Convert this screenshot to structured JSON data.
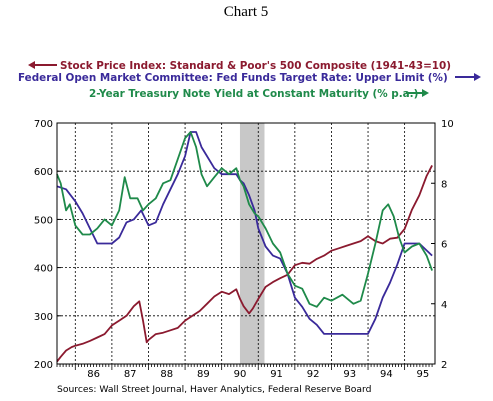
{
  "chart_data": {
    "type": "line",
    "title": "Chart 5",
    "x_tick_labels": [
      "86",
      "87",
      "88",
      "89",
      "90",
      "91",
      "92",
      "93",
      "94",
      "95"
    ],
    "x_range": [
      1985.5,
      1995.83
    ],
    "y_left": {
      "range": [
        200,
        700
      ],
      "ticks": [
        200,
        300,
        400,
        500,
        600,
        700
      ]
    },
    "y_right": {
      "range": [
        2,
        10
      ],
      "ticks": [
        2,
        4,
        6,
        8,
        10
      ]
    },
    "recession_band": [
      1990.5,
      1991.17
    ],
    "grid": true,
    "source": "Sources:  Wall Street Journal, Haver Analytics, Federal Reserve Board",
    "colors": {
      "sp500": "#8b1a2f",
      "fedfunds": "#3a2a9a",
      "treasury": "#1f8a4a",
      "recession": "#c8c8c8",
      "grid": "#000000"
    },
    "series": [
      {
        "name": "Stock Price Index: Standard & Poor's 500 Composite  (1941-43=10)",
        "legend_arrow": "left",
        "axis": "left",
        "color_key": "sp500",
        "x": [
          1985.5,
          1985.6,
          1985.75,
          1985.9,
          1986.0,
          1986.2,
          1986.4,
          1986.6,
          1986.8,
          1987.0,
          1987.2,
          1987.4,
          1987.6,
          1987.75,
          1987.85,
          1987.95,
          1988.0,
          1988.2,
          1988.4,
          1988.6,
          1988.8,
          1989.0,
          1989.2,
          1989.4,
          1989.6,
          1989.8,
          1990.0,
          1990.2,
          1990.4,
          1990.5,
          1990.6,
          1990.75,
          1990.85,
          1991.0,
          1991.2,
          1991.4,
          1991.6,
          1991.8,
          1992.0,
          1992.2,
          1992.4,
          1992.6,
          1992.8,
          1993.0,
          1993.2,
          1993.4,
          1993.6,
          1993.8,
          1994.0,
          1994.2,
          1994.4,
          1994.6,
          1994.8,
          1995.0,
          1995.2,
          1995.4,
          1995.6,
          1995.75
        ],
        "y": [
          205,
          215,
          228,
          235,
          238,
          242,
          248,
          255,
          262,
          280,
          290,
          300,
          320,
          330,
          290,
          245,
          250,
          262,
          265,
          270,
          275,
          290,
          300,
          310,
          325,
          340,
          350,
          345,
          355,
          335,
          320,
          305,
          315,
          335,
          360,
          370,
          378,
          385,
          405,
          410,
          408,
          418,
          425,
          435,
          440,
          445,
          450,
          455,
          465,
          455,
          450,
          460,
          462,
          480,
          520,
          550,
          590,
          612
        ]
      },
      {
        "name": "Federal Open Market Committee: Fed Funds Target Rate: Upper Limit (%)",
        "legend_arrow": "right",
        "axis": "right",
        "color_key": "fedfunds",
        "x": [
          1985.5,
          1985.75,
          1986.0,
          1986.2,
          1986.4,
          1986.6,
          1986.8,
          1987.0,
          1987.2,
          1987.4,
          1987.6,
          1987.8,
          1988.0,
          1988.2,
          1988.4,
          1988.6,
          1988.8,
          1989.0,
          1989.15,
          1989.3,
          1989.45,
          1989.6,
          1989.8,
          1990.0,
          1990.2,
          1990.4,
          1990.5,
          1990.6,
          1990.75,
          1990.9,
          1991.0,
          1991.2,
          1991.4,
          1991.6,
          1991.8,
          1992.0,
          1992.2,
          1992.4,
          1992.6,
          1992.8,
          1993.0,
          1993.4,
          1993.8,
          1994.0,
          1994.2,
          1994.4,
          1994.6,
          1994.8,
          1995.0,
          1995.4,
          1995.75
        ],
        "y": [
          7.9,
          7.8,
          7.4,
          7.0,
          6.5,
          6.0,
          6.0,
          6.0,
          6.2,
          6.7,
          6.8,
          7.1,
          6.6,
          6.7,
          7.3,
          7.8,
          8.3,
          8.9,
          9.7,
          9.7,
          9.2,
          8.9,
          8.5,
          8.3,
          8.3,
          8.3,
          8.1,
          8.0,
          7.6,
          7.1,
          6.5,
          5.9,
          5.6,
          5.5,
          5.0,
          4.2,
          3.9,
          3.5,
          3.3,
          3.0,
          3.0,
          3.0,
          3.0,
          3.0,
          3.5,
          4.2,
          4.7,
          5.3,
          6.0,
          6.0,
          5.6
        ]
      },
      {
        "name": "2-Year Treasury Note Yield at Constant Maturity (% p.a.)",
        "legend_arrow": "right",
        "axis": "right",
        "color_key": "treasury",
        "x": [
          1985.5,
          1985.6,
          1985.75,
          1985.85,
          1986.0,
          1986.2,
          1986.4,
          1986.6,
          1986.8,
          1987.0,
          1987.2,
          1987.35,
          1987.5,
          1987.7,
          1987.85,
          1988.0,
          1988.2,
          1988.4,
          1988.6,
          1988.8,
          1989.0,
          1989.15,
          1989.3,
          1989.45,
          1989.6,
          1989.8,
          1990.0,
          1990.2,
          1990.4,
          1990.5,
          1990.6,
          1990.75,
          1990.9,
          1991.0,
          1991.2,
          1991.4,
          1991.6,
          1991.8,
          1992.0,
          1992.2,
          1992.4,
          1992.6,
          1992.8,
          1993.0,
          1993.3,
          1993.6,
          1993.8,
          1994.0,
          1994.2,
          1994.4,
          1994.55,
          1994.7,
          1994.85,
          1995.0,
          1995.2,
          1995.4,
          1995.6,
          1995.75
        ],
        "y": [
          8.3,
          8.0,
          7.1,
          7.3,
          6.6,
          6.3,
          6.3,
          6.5,
          6.8,
          6.6,
          7.1,
          8.2,
          7.5,
          7.5,
          7.1,
          7.3,
          7.5,
          8.0,
          8.1,
          8.8,
          9.5,
          9.7,
          9.2,
          8.3,
          7.9,
          8.2,
          8.5,
          8.3,
          8.5,
          8.1,
          7.9,
          7.3,
          7.0,
          6.9,
          6.5,
          6.0,
          5.7,
          5.0,
          4.6,
          4.5,
          4.0,
          3.9,
          4.2,
          4.1,
          4.3,
          4.0,
          4.1,
          5.0,
          6.0,
          7.1,
          7.3,
          6.9,
          6.2,
          5.7,
          5.9,
          6.0,
          5.6,
          5.1
        ]
      }
    ]
  }
}
